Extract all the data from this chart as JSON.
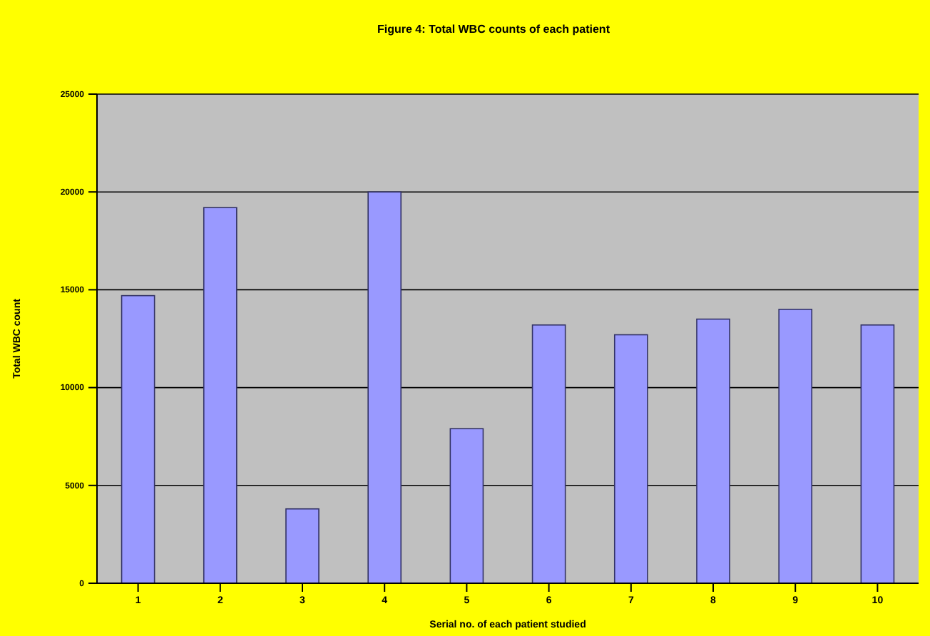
{
  "chart_data": {
    "type": "bar",
    "title": "Figure 4: Total WBC counts of each patient",
    "xlabel": "Serial no. of each patient studied",
    "ylabel": "Total WBC count",
    "categories": [
      "1",
      "2",
      "3",
      "4",
      "5",
      "6",
      "7",
      "8",
      "9",
      "10"
    ],
    "values": [
      14700,
      19200,
      3800,
      20000,
      7900,
      13200,
      12700,
      13500,
      14000,
      13200
    ],
    "color": "#9999ff",
    "ylim": [
      0,
      25000
    ],
    "yticks": [
      0,
      5000,
      10000,
      15000,
      20000,
      25000
    ],
    "grid": "y",
    "legend": false
  }
}
